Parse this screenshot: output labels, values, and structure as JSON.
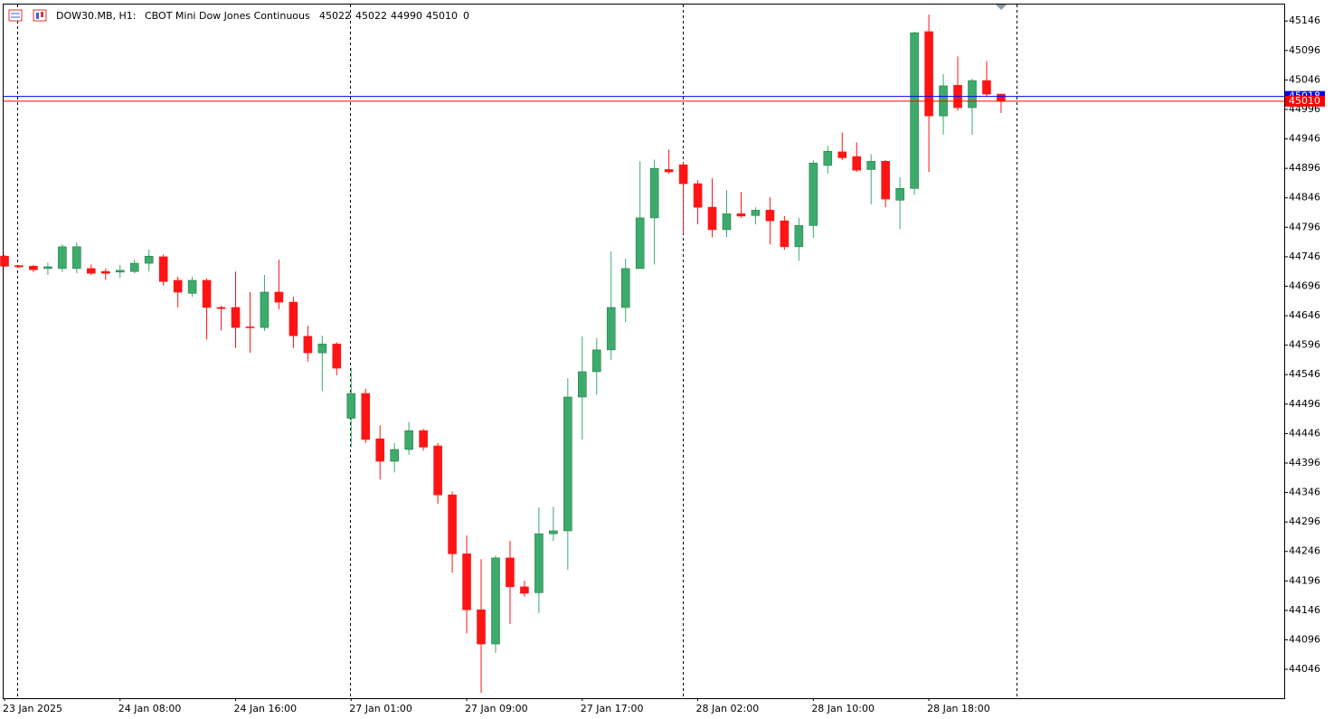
{
  "chart_data": {
    "type": "candlestick",
    "symbol": "DOW30.MB, H1:",
    "title": "CBOT Mini Dow Jones Continuous",
    "volume": 0,
    "categories": [
      "23 Jan 2025",
      null,
      null,
      null,
      null,
      null,
      null,
      null,
      "24 Jan 08:00",
      null,
      null,
      null,
      null,
      null,
      null,
      null,
      "24 Jan 16:00",
      null,
      null,
      null,
      null,
      null,
      null,
      null,
      "27 Jan 01:00",
      null,
      null,
      null,
      null,
      null,
      null,
      null,
      "27 Jan 09:00",
      null,
      null,
      null,
      null,
      null,
      null,
      null,
      "27 Jan 17:00",
      null,
      null,
      null,
      null,
      null,
      null,
      null,
      "28 Jan 02:00",
      null,
      null,
      null,
      null,
      null,
      null,
      null,
      "28 Jan 10:00",
      null,
      null,
      null,
      null,
      null,
      null,
      null,
      "28 Jan 18:00",
      null,
      null,
      null,
      null,
      null
    ],
    "open": [
      44747,
      44731,
      44730,
      44726,
      44726,
      44726,
      44726,
      44721,
      44720,
      44721,
      44735,
      44746,
      44706,
      44684,
      44706,
      44660,
      44660,
      44627,
      44626,
      44686,
      44669,
      44611,
      44583,
      44598,
      44472,
      44514,
      44437,
      44399,
      44419,
      44451,
      44425,
      44342,
      44242,
      44147,
      44089,
      44235,
      44186,
      44176,
      44276,
      44281,
      44508,
      44551,
      44588,
      44660,
      44726,
      44812,
      44894,
      44902,
      44870,
      44830,
      44792,
      44819,
      44816,
      44825,
      44807,
      44763,
      44799,
      44901,
      44924,
      44916,
      44894,
      44908,
      44842,
      44862,
      45128,
      44985,
      45037,
      44999,
      45045,
      45022
    ],
    "high": [
      44749,
      44732,
      44732,
      44736,
      44767,
      44770,
      44733,
      44726,
      44732,
      44741,
      44758,
      44750,
      44712,
      44712,
      44709,
      44663,
      44721,
      44686,
      44715,
      44741,
      44678,
      44629,
      44612,
      44601,
      44558,
      44522,
      44460,
      44430,
      44466,
      44454,
      44430,
      44348,
      44273,
      44233,
      44239,
      44264,
      44196,
      44321,
      44322,
      44540,
      44611,
      44608,
      44755,
      44743,
      44908,
      44911,
      44928,
      44907,
      44876,
      44879,
      44859,
      44856,
      44830,
      44847,
      44815,
      44812,
      44910,
      44934,
      44957,
      44940,
      44920,
      44910,
      44881,
      45128,
      45157,
      45056,
      45086,
      45048,
      45078,
      45022
    ],
    "low": [
      44729,
      44727,
      44720,
      44715,
      44720,
      44718,
      44715,
      44707,
      44710,
      44718,
      44721,
      44697,
      44660,
      44678,
      44606,
      44621,
      44591,
      44583,
      44620,
      44657,
      44591,
      44568,
      44518,
      44545,
      44423,
      44430,
      44368,
      44380,
      44410,
      44417,
      44327,
      44210,
      44107,
      44006,
      44074,
      44123,
      44169,
      44141,
      44264,
      44215,
      44436,
      44512,
      44571,
      44635,
      44726,
      44733,
      44887,
      44785,
      44801,
      44779,
      44779,
      44812,
      44801,
      44767,
      44758,
      44739,
      44778,
      44887,
      44910,
      44890,
      44835,
      44830,
      44793,
      44851,
      44890,
      44953,
      44994,
      44953,
      45017,
      44990
    ],
    "close": [
      44730,
      44729,
      44724,
      44729,
      44763,
      44763,
      44718,
      44718,
      44723,
      44735,
      44747,
      44704,
      44686,
      44706,
      44660,
      44658,
      44626,
      44626,
      44686,
      44669,
      44612,
      44583,
      44598,
      44557,
      44514,
      44436,
      44399,
      44419,
      44451,
      44423,
      44342,
      44242,
      44147,
      44089,
      44235,
      44186,
      44175,
      44276,
      44281,
      44508,
      44551,
      44588,
      44660,
      44726,
      44812,
      44896,
      44890,
      44870,
      44830,
      44792,
      44819,
      44815,
      44825,
      44807,
      44763,
      44799,
      44905,
      44925,
      44914,
      44893,
      44908,
      44844,
      44862,
      45126,
      44985,
      45036,
      44999,
      45045,
      45022,
      45010
    ],
    "up_color": "#3cab6b",
    "down_color": "#ff1414",
    "ylim": [
      43997,
      45174
    ],
    "yticks": [
      45146,
      45096,
      45046,
      44996,
      44946,
      44896,
      44846,
      44796,
      44746,
      44696,
      44646,
      44596,
      44546,
      44496,
      44446,
      44396,
      44346,
      44296,
      44246,
      44196,
      44146,
      44096,
      44046
    ],
    "ask": 45018,
    "ask_color": "#0000ff",
    "bid": 45010,
    "bid_color": "#ff0000"
  }
}
